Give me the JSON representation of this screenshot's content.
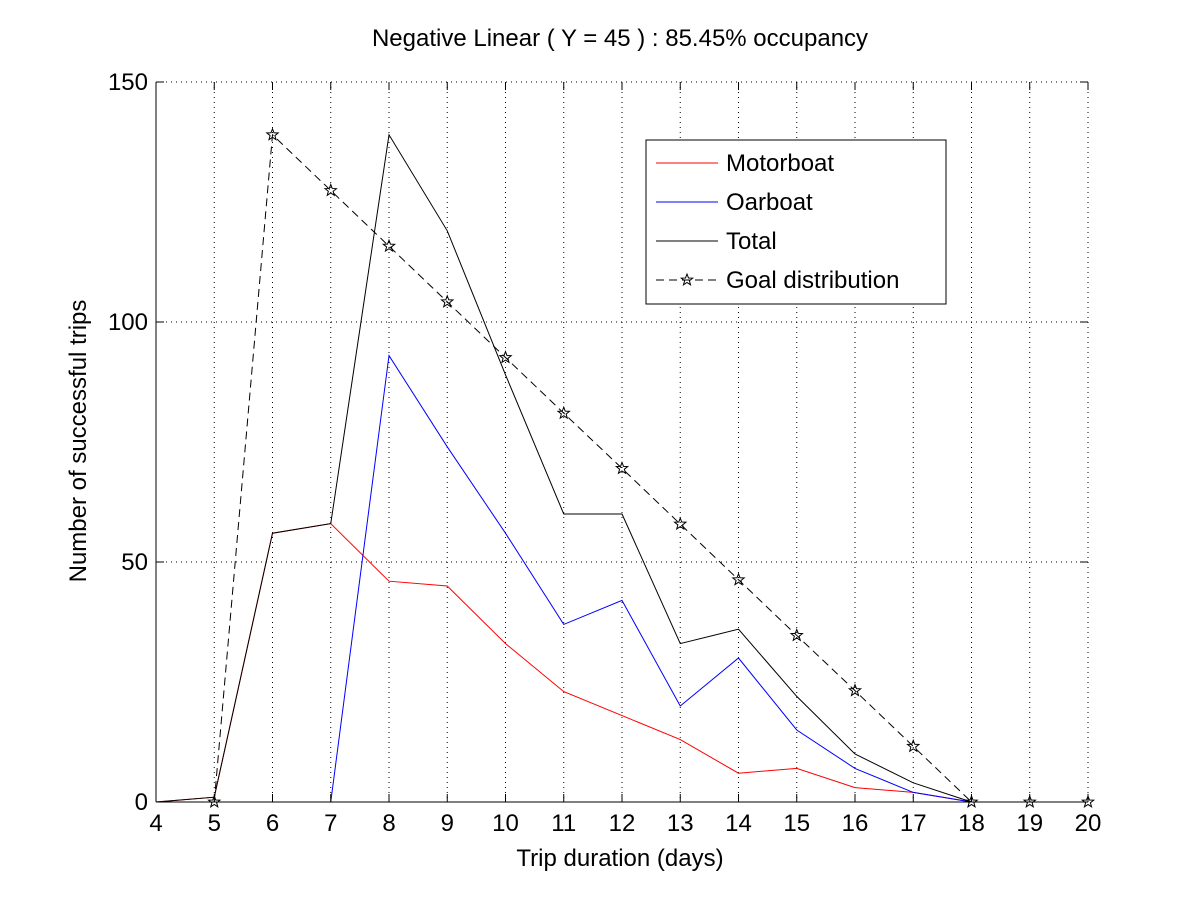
{
  "chart_data": {
    "type": "line",
    "title": "Negative Linear ( Y = 45 ) : 85.45% occupancy",
    "xlabel": "Trip duration (days)",
    "ylabel": "Number of successful trips",
    "xlim": [
      4,
      20
    ],
    "ylim": [
      0,
      150
    ],
    "xticks": [
      4,
      5,
      6,
      7,
      8,
      9,
      10,
      11,
      12,
      13,
      14,
      15,
      16,
      17,
      18,
      19,
      20
    ],
    "yticks": [
      0,
      50,
      100,
      150
    ],
    "grid": true,
    "legend_position": "top-right",
    "series": [
      {
        "name": "Motorboat",
        "color": "#ff0000",
        "style": "solid",
        "marker": "none",
        "x": [
          4,
          5,
          6,
          7,
          8,
          9,
          10,
          11,
          12,
          13,
          14,
          15,
          16,
          17,
          18
        ],
        "y": [
          0,
          1,
          56,
          58,
          46,
          45,
          33,
          23,
          18,
          13,
          6,
          7,
          3,
          2,
          0
        ]
      },
      {
        "name": "Oarboat",
        "color": "#0000ff",
        "style": "solid",
        "marker": "none",
        "x": [
          4,
          5,
          6,
          7,
          8,
          9,
          10,
          11,
          12,
          13,
          14,
          15,
          16,
          17,
          18
        ],
        "y": [
          0,
          0,
          0,
          0,
          93,
          74,
          56,
          37,
          42,
          20,
          30,
          15,
          7,
          2,
          0
        ]
      },
      {
        "name": "Total",
        "color": "#000000",
        "style": "solid",
        "marker": "none",
        "x": [
          4,
          5,
          6,
          7,
          8,
          9,
          10,
          11,
          12,
          13,
          14,
          15,
          16,
          17,
          18
        ],
        "y": [
          0,
          1,
          56,
          58,
          139,
          119,
          89,
          60,
          60,
          33,
          36,
          22,
          10,
          4,
          0
        ]
      },
      {
        "name": "Goal distribution",
        "color": "#000000",
        "style": "dashed",
        "marker": "star",
        "x": [
          5,
          6,
          7,
          8,
          9,
          10,
          11,
          12,
          13,
          14,
          15,
          16,
          17,
          18,
          19,
          20
        ],
        "y": [
          0,
          139,
          127.4,
          115.8,
          104.2,
          92.6,
          81,
          69.5,
          57.9,
          46.3,
          34.7,
          23.2,
          11.6,
          0,
          0,
          0
        ]
      }
    ]
  }
}
